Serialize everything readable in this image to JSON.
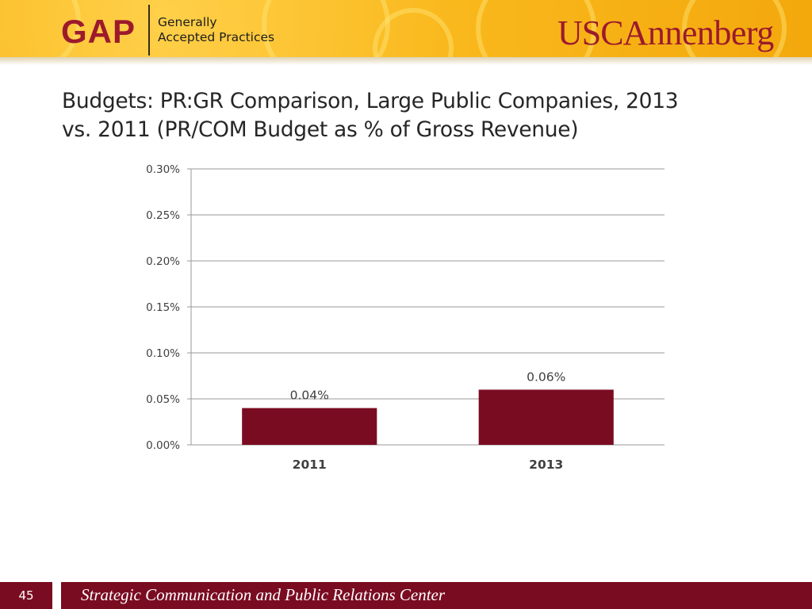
{
  "header": {
    "gap_logo": "GAP",
    "gap_line1": "Generally",
    "gap_line2": "Accepted Practices",
    "usc_part": "USC",
    "annenberg_part": "Annenberg"
  },
  "slide": {
    "title_line1": "Budgets: PR:GR Comparison, Large Public Companies, 2013",
    "title_line2": "vs. 2011 (PR/COM Budget as % of Gross Revenue)"
  },
  "chart_data": {
    "type": "bar",
    "categories": [
      "2011",
      "2013"
    ],
    "values": [
      0.04,
      0.06
    ],
    "data_labels": [
      "0.04%",
      "0.06%"
    ],
    "yticks": [
      0.0,
      0.05,
      0.1,
      0.15,
      0.2,
      0.25,
      0.3
    ],
    "ytick_labels": [
      "0.00%",
      "0.05%",
      "0.10%",
      "0.15%",
      "0.20%",
      "0.25%",
      "0.30%"
    ],
    "ylim": [
      0,
      0.3
    ],
    "grid": true,
    "legend": "none",
    "bar_color": "#7a0c22",
    "title": "",
    "xlabel": "",
    "ylabel": ""
  },
  "footer": {
    "page_number": "45",
    "text": "Strategic Communication and Public Relations Center"
  },
  "colors": {
    "brand_red": "#9c1a2c",
    "header_gold": "#f9b81c",
    "footer_maroon": "#7a0c22"
  }
}
